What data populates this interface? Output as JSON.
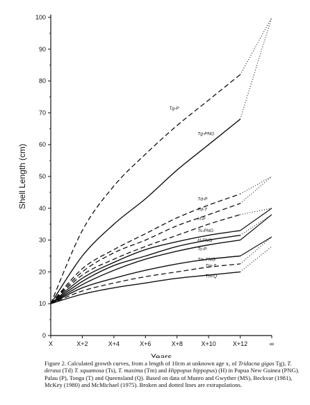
{
  "chart_data": {
    "type": "line",
    "xlabel": "Years",
    "ylabel": "Shell Length (cm)",
    "x_ticks": [
      "X",
      "X+2",
      "X+4",
      "X+6",
      "X+8",
      "X+10",
      "X+12",
      "∞"
    ],
    "y_ticks": [
      0,
      10,
      20,
      30,
      40,
      50,
      60,
      70,
      80,
      90,
      100
    ],
    "ylim": [
      0,
      100
    ],
    "grid": false,
    "series": [
      {
        "name": "Tg-P",
        "style": "dashed",
        "points": [
          [
            0,
            10
          ],
          [
            2,
            33
          ],
          [
            4,
            47
          ],
          [
            6,
            57
          ],
          [
            8,
            66
          ],
          [
            10,
            74
          ],
          [
            12,
            82
          ]
        ],
        "extrapolated": [
          [
            12,
            82
          ],
          [
            14,
            100
          ]
        ],
        "ext_style": "dotted"
      },
      {
        "name": "Tg-PNG",
        "style": "solid",
        "points": [
          [
            0,
            10
          ],
          [
            2,
            25
          ],
          [
            4,
            35
          ],
          [
            6,
            43
          ],
          [
            8,
            52
          ],
          [
            10,
            60
          ],
          [
            12,
            68
          ]
        ],
        "extrapolated": [
          [
            12,
            68
          ],
          [
            14,
            100
          ]
        ],
        "ext_style": "dotted"
      },
      {
        "name": "Td-P",
        "style": "dashed",
        "points": [
          [
            0,
            10
          ],
          [
            2,
            21
          ],
          [
            4,
            27
          ],
          [
            6,
            32
          ],
          [
            8,
            37
          ],
          [
            10,
            41
          ],
          [
            12,
            44.5
          ]
        ],
        "extrapolated": [
          [
            12,
            44.5
          ],
          [
            14,
            50
          ]
        ],
        "ext_style": "dotted"
      },
      {
        "name": "Td-T",
        "style": "dashed",
        "points": [
          [
            0,
            10
          ],
          [
            2,
            20
          ],
          [
            4,
            26
          ],
          [
            6,
            30
          ],
          [
            8,
            34.5
          ],
          [
            10,
            38
          ],
          [
            12,
            41.5
          ]
        ],
        "extrapolated": [
          [
            12,
            41.5
          ],
          [
            14,
            50
          ]
        ],
        "ext_style": "dotted"
      },
      {
        "name": "H-P",
        "style": "dashed",
        "points": [
          [
            0,
            10
          ],
          [
            2,
            19
          ],
          [
            4,
            24
          ],
          [
            6,
            28
          ],
          [
            8,
            31.5
          ],
          [
            10,
            35
          ],
          [
            12,
            38
          ]
        ],
        "extrapolated": [
          [
            12,
            38
          ],
          [
            14,
            40
          ]
        ],
        "ext_style": "dotted"
      },
      {
        "name": "Ts-PNG",
        "style": "solid",
        "points": [
          [
            0,
            10
          ],
          [
            2,
            18
          ],
          [
            4,
            23
          ],
          [
            6,
            27
          ],
          [
            8,
            29.5
          ],
          [
            10,
            31.5
          ],
          [
            12,
            33
          ]
        ],
        "extrapolated": [
          [
            12,
            33
          ],
          [
            14,
            40
          ]
        ],
        "ext_style": "solid"
      },
      {
        "name": "H-PNG",
        "style": "solid",
        "points": [
          [
            0,
            10
          ],
          [
            2,
            17
          ],
          [
            4,
            22
          ],
          [
            6,
            25
          ],
          [
            8,
            28
          ],
          [
            10,
            30
          ],
          [
            12,
            31.5
          ]
        ],
        "extrapolated": [
          [
            12,
            31.5
          ],
          [
            14,
            38
          ]
        ],
        "ext_style": "dotted"
      },
      {
        "name": "Ts-P",
        "style": "solid",
        "points": [
          [
            0,
            10
          ],
          [
            2,
            16
          ],
          [
            4,
            20.5
          ],
          [
            6,
            24
          ],
          [
            8,
            26.5
          ],
          [
            10,
            28.5
          ],
          [
            12,
            30
          ]
        ],
        "extrapolated": [
          [
            12,
            30
          ],
          [
            14,
            38
          ]
        ],
        "ext_style": "solid"
      },
      {
        "name": "Tm-PNG",
        "style": "solid",
        "points": [
          [
            0,
            10
          ],
          [
            2,
            15
          ],
          [
            4,
            18
          ],
          [
            6,
            20.5
          ],
          [
            8,
            22.5
          ],
          [
            10,
            24
          ],
          [
            12,
            25
          ]
        ],
        "extrapolated": [
          [
            12,
            25
          ],
          [
            14,
            31
          ]
        ],
        "ext_style": "solid"
      },
      {
        "name": "Tm-T",
        "style": "dashed",
        "points": [
          [
            0,
            10
          ],
          [
            2,
            14
          ],
          [
            4,
            16.5
          ],
          [
            6,
            18.5
          ],
          [
            8,
            20
          ],
          [
            10,
            21.5
          ],
          [
            12,
            22.5
          ]
        ],
        "extrapolated": [
          [
            12,
            22.5
          ],
          [
            14,
            31
          ]
        ],
        "ext_style": "dotted"
      },
      {
        "name": "Tm-Q",
        "style": "solid",
        "points": [
          [
            0,
            10
          ],
          [
            2,
            13
          ],
          [
            4,
            15
          ],
          [
            6,
            16.5
          ],
          [
            8,
            18
          ],
          [
            10,
            19
          ],
          [
            12,
            20
          ]
        ],
        "extrapolated": [
          [
            12,
            20
          ],
          [
            14,
            28
          ]
        ],
        "ext_style": "dotted"
      }
    ],
    "labels": [
      {
        "text": "Tg-P",
        "x": 7.5,
        "y": 71
      },
      {
        "text": "Tg-PNG",
        "x": 9.3,
        "y": 63
      },
      {
        "text": "Td-P",
        "x": 9.3,
        "y": 42.5
      },
      {
        "text": "Td-T",
        "x": 9.3,
        "y": 39.2
      },
      {
        "text": "H-P",
        "x": 9.3,
        "y": 36.2
      },
      {
        "text": "Ts-PNG",
        "x": 9.3,
        "y": 32.5
      },
      {
        "text": "H-PNG",
        "x": 9.3,
        "y": 29.5
      },
      {
        "text": "Ts-P",
        "x": 9.3,
        "y": 26.8
      },
      {
        "text": "Tm-PNG",
        "x": 9.3,
        "y": 23.5
      },
      {
        "text": "Tm-T",
        "x": 9.8,
        "y": 21.5
      },
      {
        "text": "Tm-Q",
        "x": 9.8,
        "y": 18.2
      }
    ]
  },
  "caption": {
    "p1": "Figure 2. Calculated growth curves, from a length of 10cm at unknown age x, of ",
    "tg_name": "Tridacna gigas",
    "p2": " Tg), ",
    "td_name": "T. derasa",
    "p3": " (Td) ",
    "ts_name": "T. squamosa",
    "p4": " (Ts), ",
    "tm_name": "T. maxima",
    "p5": " (Tm) and ",
    "h_name": "Hippopus hippopus",
    "p6": ") (H) in Papua New Guinea (PNG). Palau (P), Tonga (T) and Queensland (Q). Based on data of Munro and Gwyther (MS), Beckvar (1981), McKey (1980) and McMichael (1975). Broken and dotted lines are extrapolations."
  }
}
